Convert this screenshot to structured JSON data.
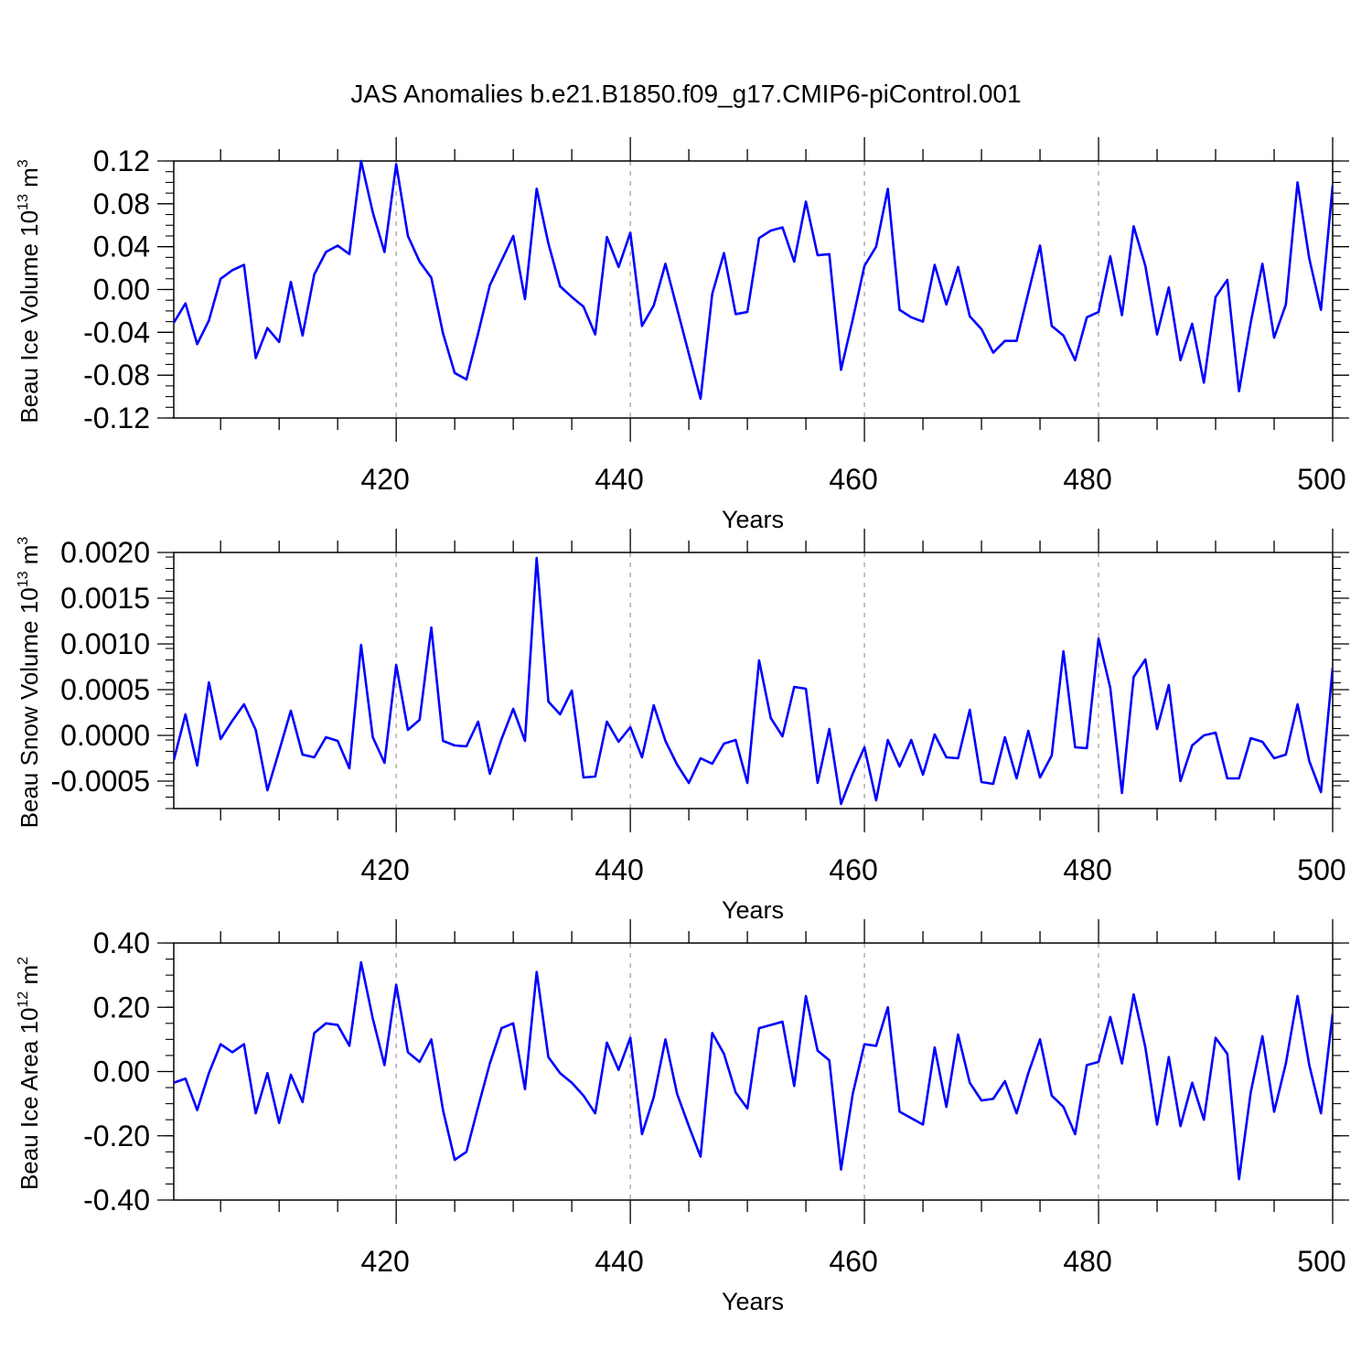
{
  "title": "JAS Anomalies b.e21.B1850.f09_g17.CMIP6-piControl.001",
  "line_color": "#0000ff",
  "chart_data": [
    {
      "type": "line",
      "title": "JAS Anomalies b.e21.B1850.f09_g17.CMIP6-piControl.001",
      "xlabel": "Years",
      "ylabel": {
        "base": "Beau Ice Volume 10",
        "exp": "13",
        "unit": " m",
        "unit_exp": "3"
      },
      "xlim": [
        401,
        500
      ],
      "ylim": [
        -0.12,
        0.12
      ],
      "yticks": [
        "-0.12",
        "-0.08",
        "-0.04",
        "0.00",
        "0.04",
        "0.08",
        "0.12"
      ],
      "xticks": [
        "420",
        "440",
        "460",
        "480",
        "500"
      ],
      "grid": "vertical-dashed",
      "series": [
        {
          "name": "Beau Ice Volume",
          "x_start": 401,
          "values": [
            -0.031,
            -0.013,
            -0.051,
            -0.029,
            0.01,
            0.018,
            0.023,
            -0.064,
            -0.036,
            -0.049,
            0.007,
            -0.043,
            0.014,
            0.035,
            0.041,
            0.033,
            0.12,
            0.072,
            0.035,
            0.117,
            0.05,
            0.026,
            0.011,
            -0.041,
            -0.078,
            -0.084,
            -0.041,
            0.004,
            0.027,
            0.05,
            -0.009,
            0.094,
            0.043,
            0.003,
            -0.007,
            -0.016,
            -0.042,
            0.049,
            0.021,
            0.053,
            -0.034,
            -0.015,
            0.024,
            -0.018,
            -0.06,
            -0.102,
            -0.004,
            0.034,
            -0.023,
            -0.021,
            0.048,
            0.055,
            0.058,
            0.026,
            0.082,
            0.032,
            0.033,
            -0.075,
            -0.028,
            0.022,
            0.04,
            0.094,
            -0.019,
            -0.026,
            -0.03,
            0.023,
            -0.014,
            0.021,
            -0.025,
            -0.037,
            -0.059,
            -0.048,
            -0.048,
            -0.003,
            0.041,
            -0.034,
            -0.043,
            -0.066,
            -0.026,
            -0.021,
            0.031,
            -0.024,
            0.059,
            0.022,
            -0.042,
            0.002,
            -0.066,
            -0.032,
            -0.087,
            -0.007,
            0.009,
            -0.095,
            -0.031,
            0.024,
            -0.045,
            -0.014,
            0.1,
            0.029,
            -0.019,
            0.097
          ]
        }
      ]
    },
    {
      "type": "line",
      "xlabel": "Years",
      "ylabel": {
        "base": "Beau Snow Volume 10",
        "exp": "13",
        "unit": " m",
        "unit_exp": "3"
      },
      "xlim": [
        401,
        500
      ],
      "ylim": [
        -0.0008,
        0.002
      ],
      "yticks": [
        "-0.0005",
        "0.0000",
        "0.0005",
        "0.0010",
        "0.0015",
        "0.0020"
      ],
      "xticks": [
        "420",
        "440",
        "460",
        "480",
        "500"
      ],
      "grid": "vertical-dashed",
      "series": [
        {
          "name": "Beau Snow Volume",
          "x_start": 401,
          "values": [
            -0.00027,
            0.00023,
            -0.00033,
            0.00058,
            -4e-05,
            0.00016,
            0.00034,
            6e-05,
            -0.0006,
            -0.00017,
            0.00027,
            -0.00021,
            -0.00024,
            -2e-05,
            -6e-05,
            -0.00036,
            0.00099,
            -2e-05,
            -0.0003,
            0.00077,
            6e-05,
            0.00017,
            0.00118,
            -6e-05,
            -0.00011,
            -0.00012,
            0.00015,
            -0.00042,
            -4e-05,
            0.00029,
            -6e-05,
            0.00194,
            0.00037,
            0.00023,
            0.00049,
            -0.00046,
            -0.00045,
            0.00015,
            -7e-05,
            9e-05,
            -0.00024,
            0.00033,
            -6e-05,
            -0.00032,
            -0.00052,
            -0.00025,
            -0.00031,
            -9e-05,
            -5e-05,
            -0.00052,
            0.00082,
            0.00019,
            -1e-05,
            0.00053,
            0.00051,
            -0.00052,
            7e-05,
            -0.00075,
            -0.00042,
            -0.00013,
            -0.00071,
            -5e-05,
            -0.00034,
            -5e-05,
            -0.00043,
            1e-05,
            -0.00024,
            -0.00025,
            0.00028,
            -0.00051,
            -0.00053,
            -2e-05,
            -0.00047,
            5e-05,
            -0.00046,
            -0.00022,
            0.00092,
            -0.00013,
            -0.00014,
            0.00106,
            0.00052,
            -0.00063,
            0.00064,
            0.00083,
            7e-05,
            0.00055,
            -0.0005,
            -0.00011,
            0.0,
            3e-05,
            -0.00047,
            -0.00047,
            -3e-05,
            -7e-05,
            -0.00025,
            -0.00021,
            0.00034,
            -0.00028,
            -0.00062,
            0.00074
          ]
        }
      ]
    },
    {
      "type": "line",
      "xlabel": "Years",
      "ylabel": {
        "base": "Beau Ice Area 10",
        "exp": "12",
        "unit": " m",
        "unit_exp": "2"
      },
      "xlim": [
        401,
        500
      ],
      "ylim": [
        -0.4,
        0.4
      ],
      "yticks": [
        "-0.40",
        "-0.20",
        "0.00",
        "0.20",
        "0.40"
      ],
      "xticks": [
        "420",
        "440",
        "460",
        "480",
        "500"
      ],
      "grid": "vertical-dashed",
      "series": [
        {
          "name": "Beau Ice Area",
          "x_start": 401,
          "values": [
            -0.035,
            -0.022,
            -0.12,
            -0.005,
            0.085,
            0.06,
            0.085,
            -0.13,
            -0.005,
            -0.16,
            -0.01,
            -0.095,
            0.12,
            0.15,
            0.145,
            0.08,
            0.34,
            0.165,
            0.02,
            0.27,
            0.06,
            0.03,
            0.1,
            -0.12,
            -0.275,
            -0.25,
            -0.11,
            0.025,
            0.135,
            0.15,
            -0.055,
            0.31,
            0.045,
            -0.005,
            -0.035,
            -0.075,
            -0.13,
            0.09,
            0.005,
            0.105,
            -0.195,
            -0.08,
            0.1,
            -0.07,
            -0.17,
            -0.265,
            0.12,
            0.055,
            -0.065,
            -0.115,
            0.135,
            0.145,
            0.155,
            -0.045,
            0.235,
            0.065,
            0.035,
            -0.305,
            -0.07,
            0.085,
            0.08,
            0.2,
            -0.125,
            -0.145,
            -0.165,
            0.075,
            -0.11,
            0.115,
            -0.035,
            -0.09,
            -0.085,
            -0.03,
            -0.13,
            -0.005,
            0.1,
            -0.075,
            -0.11,
            -0.195,
            0.02,
            0.03,
            0.17,
            0.025,
            0.24,
            0.075,
            -0.165,
            0.045,
            -0.17,
            -0.035,
            -0.15,
            0.105,
            0.055,
            -0.335,
            -0.065,
            0.11,
            -0.125,
            0.025,
            0.235,
            0.02,
            -0.13,
            0.18
          ]
        }
      ]
    }
  ]
}
